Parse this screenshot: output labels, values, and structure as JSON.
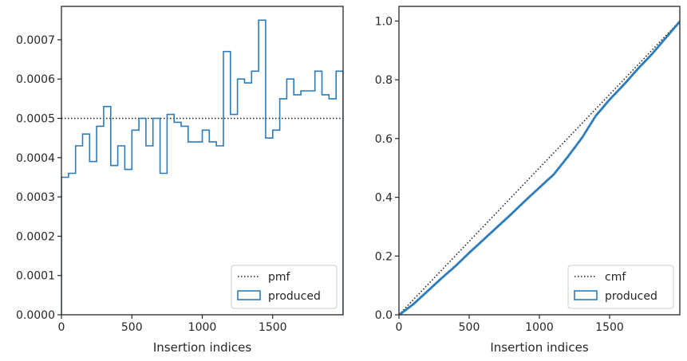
{
  "colors": {
    "series": "#2b7bba",
    "reference": "#1a1a1a",
    "text": "#262626",
    "frame": "#262626",
    "legend_border": "#cccccc"
  },
  "chart_data": [
    {
      "type": "line",
      "subtype": "step-histogram",
      "xlabel": "Insertion indices",
      "ylabel": "",
      "xlim": [
        0,
        2000
      ],
      "ylim": [
        0,
        0.000785
      ],
      "grid": false,
      "legend_position": "lower right",
      "xticks": [
        0,
        500,
        1000,
        1500
      ],
      "xtick_labels": [
        "0",
        "500",
        "1000",
        "1500"
      ],
      "yticks": [
        0,
        0.0001,
        0.0002,
        0.0003,
        0.0004,
        0.0005,
        0.0006,
        0.0007
      ],
      "ytick_labels": [
        "0.0000",
        "0.0001",
        "0.0002",
        "0.0003",
        "0.0004",
        "0.0005",
        "0.0006",
        "0.0007"
      ],
      "series": [
        {
          "name": "pmf",
          "style": "dotted",
          "x": [
            0,
            2000
          ],
          "y": [
            0.0005,
            0.0005
          ]
        },
        {
          "name": "produced",
          "style": "step",
          "bin_edges": [
            0,
            50,
            100,
            150,
            200,
            250,
            300,
            350,
            400,
            450,
            500,
            550,
            600,
            650,
            700,
            750,
            800,
            850,
            900,
            950,
            1000,
            1050,
            1100,
            1150,
            1200,
            1250,
            1300,
            1350,
            1400,
            1450,
            1500,
            1550,
            1600,
            1650,
            1700,
            1750,
            1800,
            1850,
            1900,
            1950,
            2000
          ],
          "values": [
            0.00035,
            0.00036,
            0.00043,
            0.00046,
            0.00039,
            0.00048,
            0.00053,
            0.00038,
            0.00043,
            0.00037,
            0.00047,
            0.0005,
            0.00043,
            0.0005,
            0.00036,
            0.00051,
            0.00049,
            0.00048,
            0.00044,
            0.00044,
            0.00047,
            0.00044,
            0.00043,
            0.00067,
            0.00051,
            0.0006,
            0.00059,
            0.00062,
            0.00075,
            0.00045,
            0.00047,
            0.00055,
            0.0006,
            0.00056,
            0.00057,
            0.00057,
            0.00062,
            0.00056,
            0.00055,
            0.00062
          ]
        }
      ]
    },
    {
      "type": "line",
      "subtype": "cumulative",
      "xlabel": "Insertion indices",
      "ylabel": "",
      "xlim": [
        0,
        2000
      ],
      "ylim": [
        0,
        1.05
      ],
      "grid": false,
      "legend_position": "lower right",
      "xticks": [
        0,
        500,
        1000,
        1500
      ],
      "xtick_labels": [
        "0",
        "500",
        "1000",
        "1500"
      ],
      "yticks": [
        0,
        0.2,
        0.4,
        0.6,
        0.8,
        1.0
      ],
      "ytick_labels": [
        "0.0",
        "0.2",
        "0.4",
        "0.6",
        "0.8",
        "1.0"
      ],
      "series": [
        {
          "name": "cmf",
          "style": "dotted",
          "x": [
            0,
            2000
          ],
          "y": [
            0,
            1
          ]
        },
        {
          "name": "produced",
          "style": "solid",
          "x": [
            0,
            100,
            200,
            300,
            400,
            500,
            600,
            700,
            800,
            900,
            1000,
            1100,
            1200,
            1300,
            1400,
            1500,
            1600,
            1700,
            1800,
            1900,
            2000
          ],
          "y": [
            0,
            0.036,
            0.08,
            0.124,
            0.166,
            0.212,
            0.256,
            0.3,
            0.344,
            0.39,
            0.434,
            0.478,
            0.538,
            0.602,
            0.678,
            0.734,
            0.784,
            0.838,
            0.888,
            0.944,
            1.0
          ]
        }
      ]
    }
  ]
}
